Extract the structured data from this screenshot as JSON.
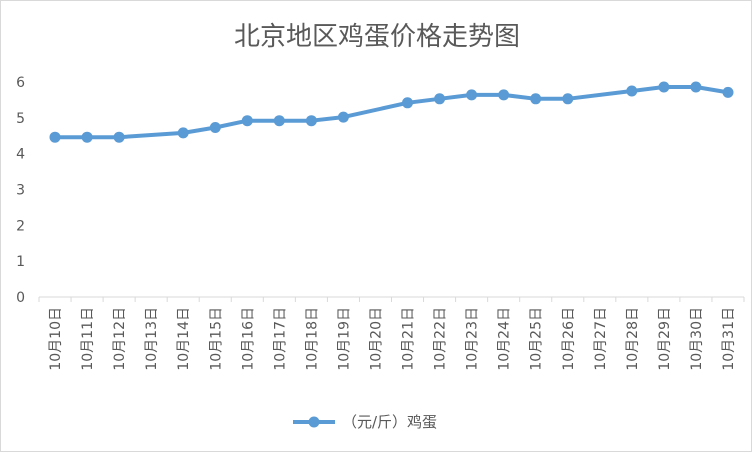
{
  "chart_data": {
    "type": "line",
    "title": "北京地区鸡蛋价格走势图",
    "categories": [
      "10月10日",
      "10月11日",
      "10月12日",
      "10月13日",
      "10月14日",
      "10月15日",
      "10月16日",
      "10月17日",
      "10月18日",
      "10月19日",
      "10月20日",
      "10月21日",
      "10月22日",
      "10月23日",
      "10月24日",
      "10月25日",
      "10月26日",
      "10月27日",
      "10月28日",
      "10月29日",
      "10月30日",
      "10月31日"
    ],
    "series": [
      {
        "name": "（元/斤）鸡蛋",
        "values": [
          4.46,
          4.46,
          4.46,
          null,
          4.58,
          4.73,
          4.92,
          4.92,
          4.92,
          5.02,
          null,
          5.42,
          5.53,
          5.64,
          5.64,
          5.53,
          5.53,
          null,
          5.75,
          5.86,
          5.86,
          5.71
        ],
        "color": "#5b9bd5"
      }
    ],
    "ylim": [
      0,
      6
    ],
    "yticks": [
      "0",
      "1",
      "2",
      "3",
      "4",
      "5",
      "6"
    ],
    "grid": false,
    "legend": "bottom"
  }
}
